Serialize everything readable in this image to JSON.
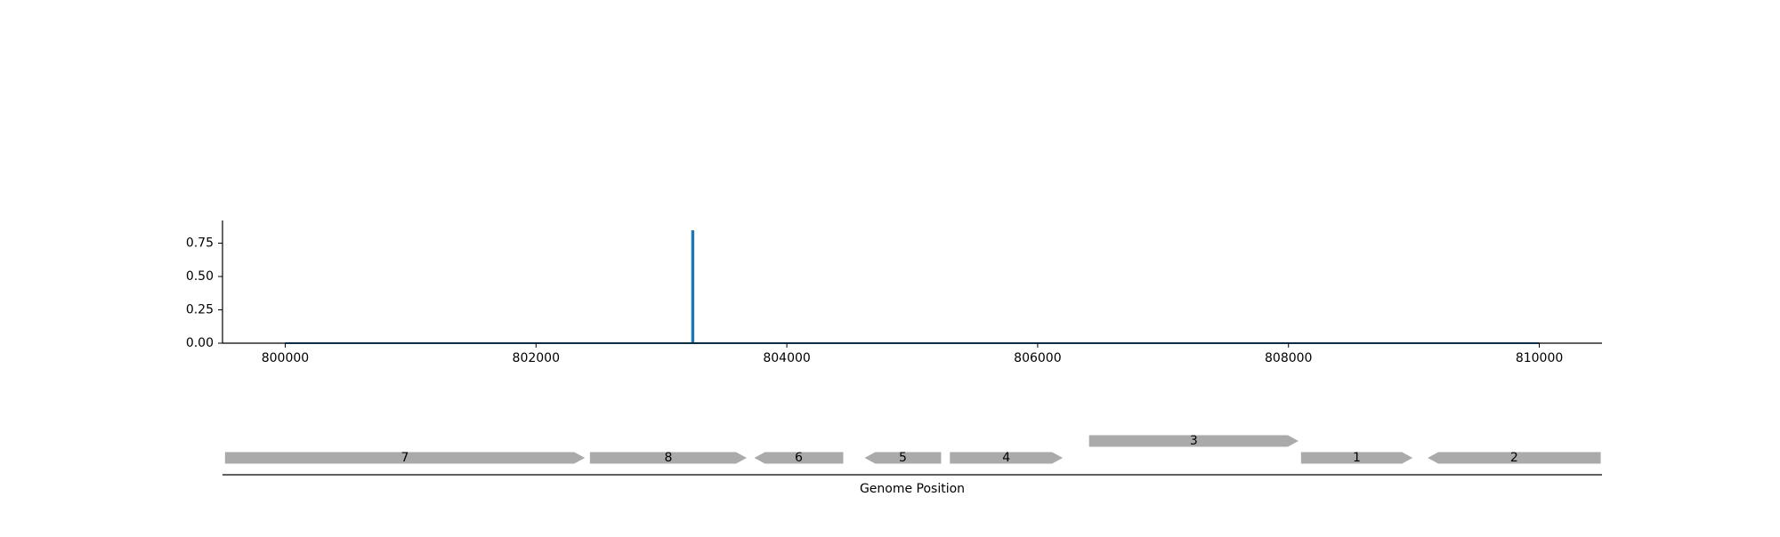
{
  "chart_data": [
    {
      "type": "line",
      "xlim": [
        799500,
        810500
      ],
      "ylim": [
        0,
        0.92
      ],
      "x_ticks": [
        800000,
        802000,
        804000,
        806000,
        808000,
        810000
      ],
      "x_tick_labels": [
        "800000",
        "802000",
        "804000",
        "806000",
        "808000",
        "810000"
      ],
      "y_ticks": [
        0,
        0.25,
        0.5,
        0.75
      ],
      "y_tick_labels": [
        "0.00",
        "0.25",
        "0.50",
        "0.75"
      ],
      "series": [
        {
          "x": [
            800000,
            803245,
            803245,
            803255,
            803255,
            810000
          ],
          "y": [
            0,
            0,
            0.84,
            0.84,
            0,
            0
          ],
          "color": "#1f77b4"
        }
      ],
      "grid": false,
      "legend": "none"
    },
    {
      "type": "gene-track",
      "xlabel": "Genome Position",
      "xlim": [
        799500,
        810500
      ],
      "feature_color": "#aaaaaa",
      "features": [
        {
          "label": "7",
          "start": 799520,
          "end": 802390,
          "strand": "+",
          "row": 0
        },
        {
          "label": "8",
          "start": 802430,
          "end": 803680,
          "strand": "+",
          "row": 0
        },
        {
          "label": "6",
          "start": 803740,
          "end": 804450,
          "strand": "-",
          "row": 0
        },
        {
          "label": "5",
          "start": 804620,
          "end": 805230,
          "strand": "-",
          "row": 0
        },
        {
          "label": "4",
          "start": 805300,
          "end": 806200,
          "strand": "+",
          "row": 0
        },
        {
          "label": "3",
          "start": 806410,
          "end": 808080,
          "strand": "+",
          "row": 1
        },
        {
          "label": "1",
          "start": 808100,
          "end": 808990,
          "strand": "+",
          "row": 0
        },
        {
          "label": "2",
          "start": 809110,
          "end": 810490,
          "strand": "-",
          "row": 0
        }
      ]
    }
  ]
}
